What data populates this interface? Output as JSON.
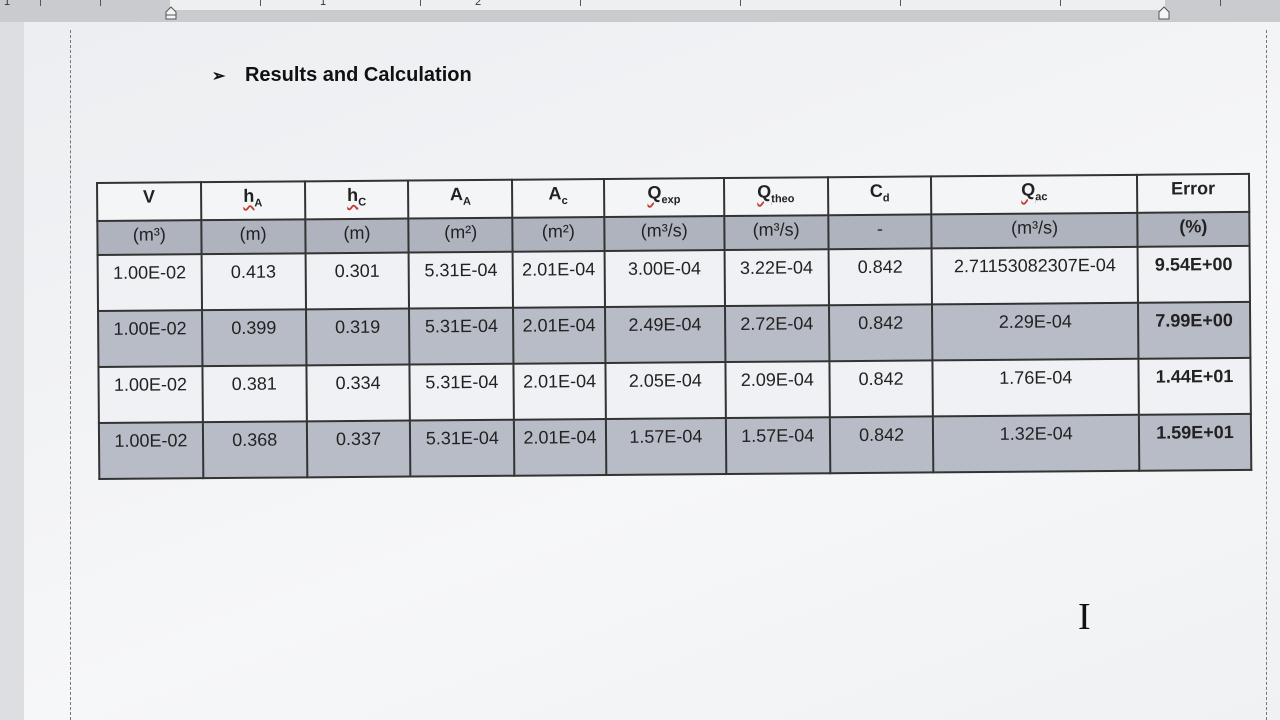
{
  "ruler": {
    "numbers": [
      "1",
      "1",
      "2"
    ]
  },
  "document": {
    "heading": "Results and Calculation"
  },
  "table": {
    "headers": [
      {
        "main": "V",
        "sub": ""
      },
      {
        "main": "h",
        "sub": "A"
      },
      {
        "main": "h",
        "sub": "C"
      },
      {
        "main": "A",
        "sub": "A"
      },
      {
        "main": "A",
        "sub": "c"
      },
      {
        "main": "Q",
        "sub": "exp"
      },
      {
        "main": "Q",
        "sub": "theo"
      },
      {
        "main": "C",
        "sub": "d"
      },
      {
        "main": "Q",
        "sub": "ac"
      },
      {
        "main": "Error",
        "sub": ""
      }
    ],
    "units": [
      "(m³)",
      "(m)",
      "(m)",
      "(m²)",
      "(m²)",
      "(m³/s)",
      "(m³/s)",
      "-",
      "(m³/s)",
      "(%)"
    ],
    "rows": [
      [
        "1.00E-02",
        "0.413",
        "0.301",
        "5.31E-04",
        "2.01E-04",
        "3.00E-04",
        "3.22E-04",
        "0.842",
        "2.71153082307E-04",
        "9.54E+00"
      ],
      [
        "1.00E-02",
        "0.399",
        "0.319",
        "5.31E-04",
        "2.01E-04",
        "2.49E-04",
        "2.72E-04",
        "0.842",
        "2.29E-04",
        "7.99E+00"
      ],
      [
        "1.00E-02",
        "0.381",
        "0.334",
        "5.31E-04",
        "2.01E-04",
        "2.05E-04",
        "2.09E-04",
        "0.842",
        "1.76E-04",
        "1.44E+01"
      ],
      [
        "1.00E-02",
        "0.368",
        "0.337",
        "5.31E-04",
        "2.01E-04",
        "1.57E-04",
        "1.57E-04",
        "0.842",
        "1.32E-04",
        "1.59E+01"
      ]
    ]
  }
}
